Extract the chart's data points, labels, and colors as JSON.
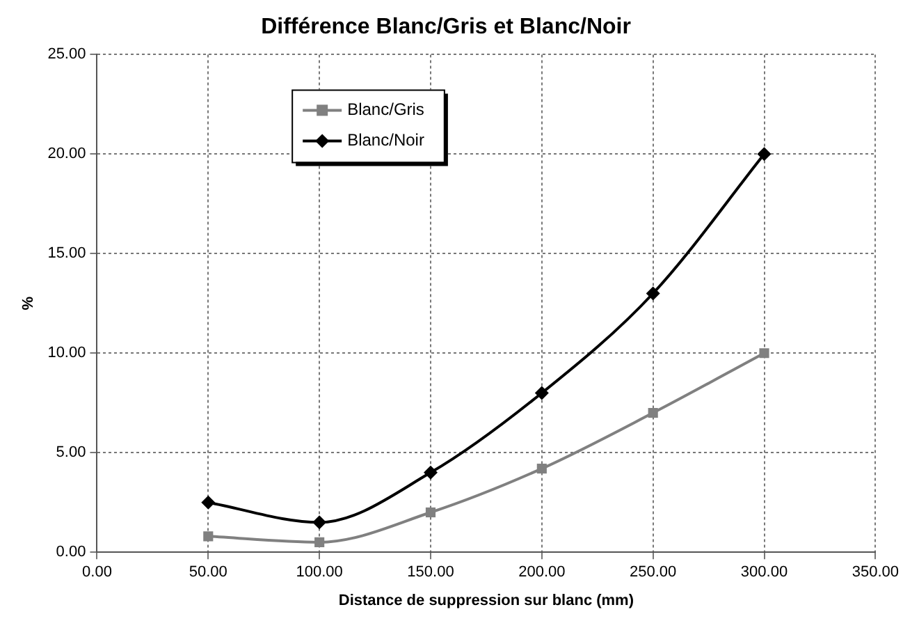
{
  "chart_data": {
    "type": "line",
    "title": "Différence Blanc/Gris et Blanc/Noir",
    "xlabel": "Distance de suppression sur blanc (mm)",
    "ylabel": "%",
    "x": [
      50,
      100,
      150,
      200,
      250,
      300
    ],
    "series": [
      {
        "name": "Blanc/Gris",
        "color": "#808080",
        "marker": "square",
        "values": [
          0.8,
          0.5,
          2.0,
          4.2,
          7.0,
          10.0
        ]
      },
      {
        "name": "Blanc/Noir",
        "color": "#000000",
        "marker": "diamond",
        "values": [
          2.5,
          1.5,
          4.0,
          8.0,
          13.0,
          20.0
        ]
      }
    ],
    "xlim": [
      0,
      350
    ],
    "xticks": [
      {
        "value": 0,
        "label": "0.00"
      },
      {
        "value": 50,
        "label": "50.00"
      },
      {
        "value": 100,
        "label": "100.00"
      },
      {
        "value": 150,
        "label": "150.00"
      },
      {
        "value": 200,
        "label": "200.00"
      },
      {
        "value": 250,
        "label": "250.00"
      },
      {
        "value": 300,
        "label": "300.00"
      },
      {
        "value": 350,
        "label": "350.00"
      }
    ],
    "ylim": [
      0,
      25
    ],
    "yticks": [
      {
        "value": 0,
        "label": "0.00"
      },
      {
        "value": 5,
        "label": "5.00"
      },
      {
        "value": 10,
        "label": "10.00"
      },
      {
        "value": 15,
        "label": "15.00"
      },
      {
        "value": 20,
        "label": "20.00"
      },
      {
        "value": 25,
        "label": "25.00"
      }
    ],
    "grid": true,
    "legend": "top",
    "line_style": "solid"
  }
}
